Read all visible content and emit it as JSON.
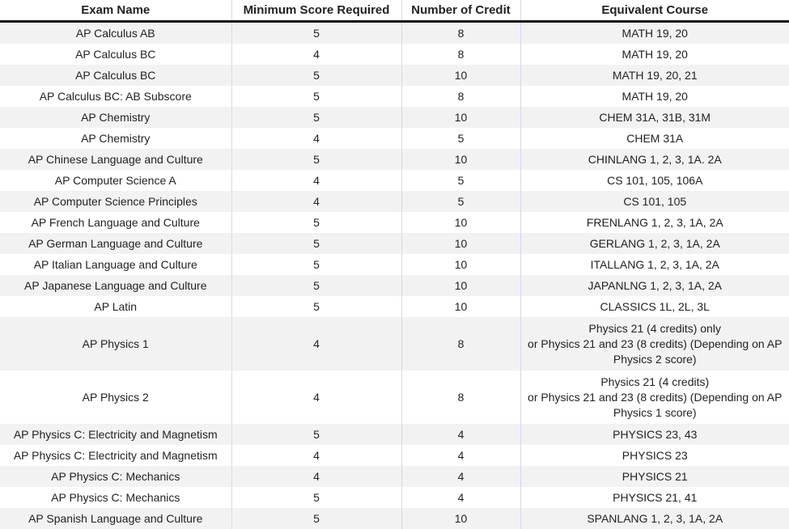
{
  "table": {
    "header": [
      "Exam Name",
      "Minimum Score Required",
      "Number of Credit",
      "Equivalent Course"
    ],
    "rows": [
      [
        "AP Calculus AB",
        "5",
        "8",
        "MATH 19, 20"
      ],
      [
        "AP Calculus BC",
        "4",
        "8",
        "MATH 19, 20"
      ],
      [
        "AP Calculus BC",
        "5",
        "10",
        "MATH 19, 20, 21"
      ],
      [
        "AP Calculus BC: AB Subscore",
        "5",
        "8",
        "MATH 19, 20"
      ],
      [
        "AP Chemistry",
        "5",
        "10",
        "CHEM 31A, 31B, 31M"
      ],
      [
        "AP Chemistry",
        "4",
        "5",
        "CHEM 31A"
      ],
      [
        "AP Chinese Language and Culture",
        "5",
        "10",
        "CHINLANG 1, 2, 3, 1A. 2A"
      ],
      [
        "AP Computer Science A",
        "4",
        "5",
        "CS 101, 105, 106A"
      ],
      [
        "AP Computer Science Principles",
        "4",
        "5",
        "CS 101, 105"
      ],
      [
        "AP French Language and Culture",
        "5",
        "10",
        "FRENLANG 1, 2, 3, 1A, 2A"
      ],
      [
        "AP German Language and Culture",
        "5",
        "10",
        "GERLANG 1, 2, 3, 1A, 2A"
      ],
      [
        "AP Italian Language and Culture",
        "5",
        "10",
        "ITALLANG 1, 2, 3, 1A, 2A"
      ],
      [
        "AP Japanese Language and Culture",
        "5",
        "10",
        "JAPANLNG 1, 2, 3, 1A, 2A"
      ],
      [
        "AP Latin",
        "5",
        "10",
        "CLASSICS 1L, 2L, 3L"
      ],
      [
        "AP Physics 1",
        "4",
        "8",
        "Physics 21 (4 credits) only\nor Physics 21 and 23 (8 credits) (Depending on AP Physics 2 score)"
      ],
      [
        "AP Physics 2",
        "4",
        "8",
        "Physics 21 (4 credits)\nor Physics 21 and 23 (8 credits) (Depending on AP Physics 1 score)"
      ],
      [
        "AP Physics C: Electricity and Magnetism",
        "5",
        "4",
        "PHYSICS 23, 43"
      ],
      [
        "AP Physics C: Electricity and Magnetism",
        "4",
        "4",
        "PHYSICS 23"
      ],
      [
        "AP Physics C: Mechanics",
        "4",
        "4",
        "PHYSICS 21"
      ],
      [
        "AP Physics C: Mechanics",
        "5",
        "4",
        "PHYSICS 21, 41"
      ],
      [
        "AP Spanish Language and Culture",
        "5",
        "10",
        "SPANLANG 1, 2, 3, 1A, 2A"
      ]
    ]
  }
}
